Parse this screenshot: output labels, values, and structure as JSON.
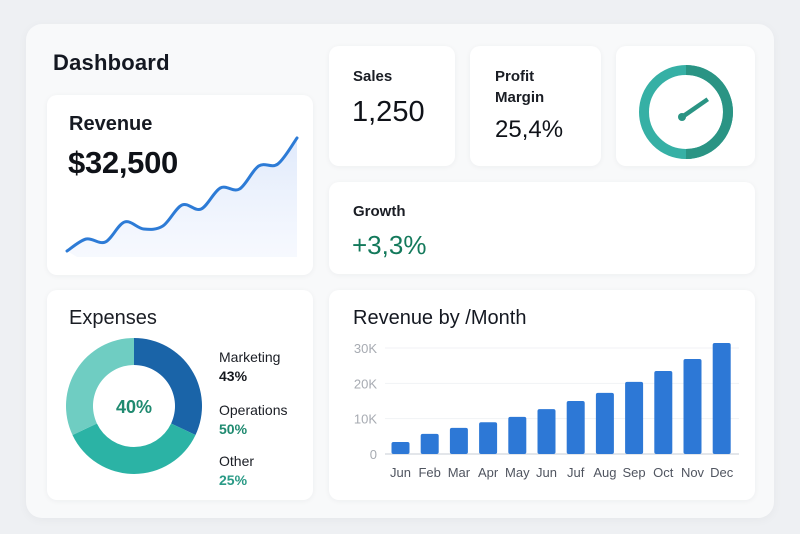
{
  "header": {
    "title": "Dashboard"
  },
  "revenue": {
    "label": "Revenue",
    "value": "$32,500",
    "sparkline": [
      2,
      14,
      11,
      31,
      24,
      27,
      48,
      44,
      65,
      64,
      87,
      89,
      115
    ],
    "line_color": "#2d7bd6"
  },
  "sales": {
    "label": "Sales",
    "value": "1,250"
  },
  "profit": {
    "label": "Profit Margin",
    "value": "25,4%"
  },
  "gauge": {
    "icon": "gauge-icon",
    "colors": {
      "light": "#36b0a5",
      "dark": "#2a9484"
    }
  },
  "growth": {
    "label": "Growth",
    "value": "+3,3%",
    "color": "#13795b"
  },
  "expenses": {
    "label": "Expenses",
    "center_label": "40%",
    "segments": [
      {
        "name": "Marketing",
        "value": "43%",
        "fraction": 0.32,
        "color": "#1a64a8",
        "text_color": "#16191f"
      },
      {
        "name": "Operations",
        "value": "50%",
        "fraction": 0.36,
        "color": "#2bb3a5",
        "text_color": "#1f8a70"
      },
      {
        "name": "Other",
        "value": "25%",
        "fraction": 0.32,
        "color": "#6fcdc2",
        "text_color": "#2a9a86"
      }
    ]
  },
  "chart_data": {
    "type": "bar",
    "title": "Revenue by /Month",
    "categories": [
      "Jun",
      "Feb",
      "Mar",
      "Apr",
      "May",
      "Jun",
      "Juf",
      "Aug",
      "Sep",
      "Oct",
      "Nov",
      "Dec"
    ],
    "values": [
      3400,
      5700,
      7400,
      9000,
      10500,
      12700,
      15000,
      17300,
      20400,
      23500,
      26900,
      31400
    ],
    "yticks": [
      "0",
      "10K",
      "20K",
      "30K"
    ],
    "ytick_values": [
      0,
      10000,
      20000,
      30000
    ],
    "ylim": [
      0,
      30000
    ],
    "xlabel": "",
    "ylabel": "",
    "grid": true,
    "bar_color": "#2d78d6"
  }
}
